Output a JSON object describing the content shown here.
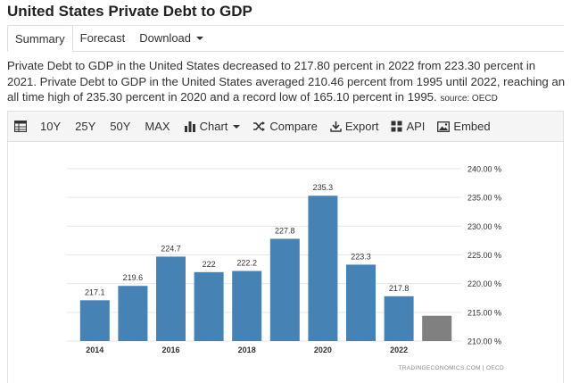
{
  "page": {
    "title": "United States Private Debt to GDP"
  },
  "tabs": [
    {
      "label": "Summary",
      "active": true
    },
    {
      "label": "Forecast",
      "active": false
    },
    {
      "label": "Download",
      "active": false
    }
  ],
  "description": {
    "text": "Private Debt to GDP in the United States decreased to 217.80 percent in 2022 from 223.30 percent in 2021. Private Debt to GDP in the United States averaged 210.46 percent from 1995 until 2022, reaching an all time high of 235.30 percent in 2020 and a record low of 165.10 percent in 1995.",
    "source": "source: OECD"
  },
  "toolbar": {
    "ranges": [
      "10Y",
      "25Y",
      "50Y",
      "MAX"
    ],
    "chart_label": "Chart",
    "compare_label": "Compare",
    "export_label": "Export",
    "api_label": "API",
    "embed_label": "Embed"
  },
  "chart_data": {
    "type": "bar",
    "categories": [
      "2014",
      "2015",
      "2016",
      "2017",
      "2018",
      "2019",
      "2020",
      "2021",
      "2022",
      "2023"
    ],
    "values": [
      217.1,
      219.6,
      224.7,
      222,
      222.2,
      227.8,
      235.3,
      223.3,
      217.8,
      214.4
    ],
    "data_labels": [
      "217.1",
      "219.6",
      "224.7",
      "222",
      "222.2",
      "227.8",
      "235.3",
      "223.3",
      "217.8",
      ""
    ],
    "x_tick_labels": [
      "2014",
      "",
      "2016",
      "",
      "2018",
      "",
      "2020",
      "",
      "2022",
      ""
    ],
    "y_ticks": [
      "210.00 %",
      "215.00 %",
      "220.00 %",
      "225.00 %",
      "230.00 %",
      "235.00 %",
      "240.00 %"
    ],
    "y_tick_values": [
      210,
      215,
      220,
      225,
      230,
      235,
      240
    ],
    "ylim": [
      210,
      240
    ],
    "grid": true,
    "colors": {
      "bar": "#4682b4",
      "forecast_bar": "#808080"
    },
    "credit": "TRADINGECONOMICS.COM  |  OECD"
  }
}
